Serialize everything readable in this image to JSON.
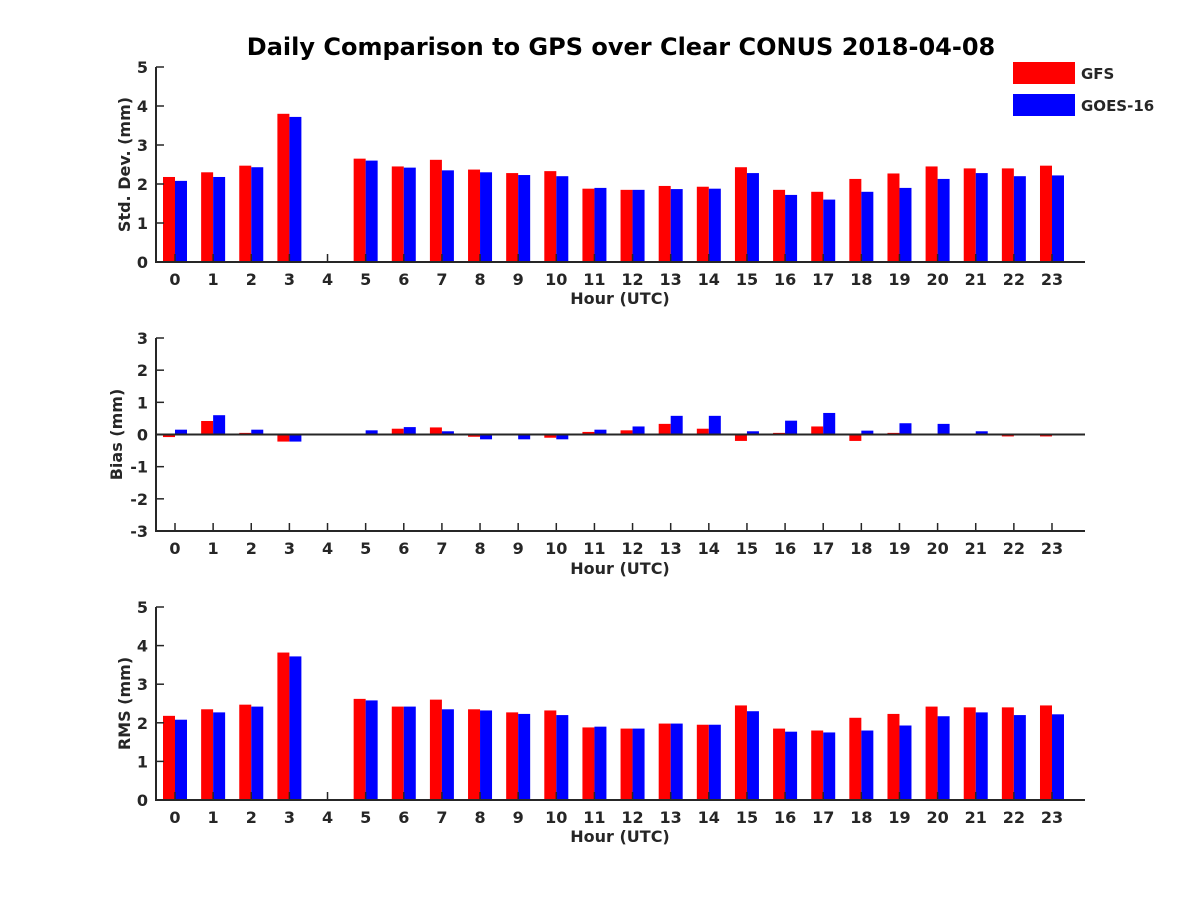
{
  "figure_title": "Daily Comparison to GPS over Clear CONUS 2018-04-08",
  "legend": [
    {
      "label": "GFS",
      "color": "#ff0000"
    },
    {
      "label": "GOES-16",
      "color": "#0000ff"
    }
  ],
  "chart_data": [
    {
      "type": "bar",
      "title": "Daily Comparison to GPS over Clear CONUS 2018-04-08",
      "xlabel": "Hour (UTC)",
      "ylabel": "Std. Dev. (mm)",
      "ylim": [
        0,
        5
      ],
      "yticks": [
        0,
        1,
        2,
        3,
        4,
        5
      ],
      "categories": [
        "0",
        "1",
        "2",
        "3",
        "4",
        "5",
        "6",
        "7",
        "8",
        "9",
        "10",
        "11",
        "12",
        "13",
        "14",
        "15",
        "16",
        "17",
        "18",
        "19",
        "20",
        "21",
        "22",
        "23"
      ],
      "series": [
        {
          "name": "GFS",
          "values": [
            2.18,
            2.3,
            2.47,
            3.8,
            null,
            2.65,
            2.45,
            2.62,
            2.37,
            2.28,
            2.33,
            1.88,
            1.85,
            1.95,
            1.93,
            2.43,
            1.85,
            1.8,
            2.13,
            2.27,
            2.45,
            2.4,
            2.4,
            2.47
          ]
        },
        {
          "name": "GOES-16",
          "values": [
            2.08,
            2.18,
            2.43,
            3.72,
            null,
            2.6,
            2.42,
            2.35,
            2.3,
            2.23,
            2.2,
            1.9,
            1.85,
            1.87,
            1.88,
            2.28,
            1.72,
            1.6,
            1.8,
            1.9,
            2.13,
            2.28,
            2.2,
            2.22
          ]
        }
      ]
    },
    {
      "type": "bar",
      "title": "",
      "xlabel": "Hour (UTC)",
      "ylabel": "Bias (mm)",
      "ylim": [
        -3,
        3
      ],
      "yticks": [
        -3,
        -2,
        -1,
        0,
        1,
        2,
        3
      ],
      "categories": [
        "0",
        "1",
        "2",
        "3",
        "4",
        "5",
        "6",
        "7",
        "8",
        "9",
        "10",
        "11",
        "12",
        "13",
        "14",
        "15",
        "16",
        "17",
        "18",
        "19",
        "20",
        "21",
        "22",
        "23"
      ],
      "series": [
        {
          "name": "GFS",
          "values": [
            -0.08,
            0.42,
            0.05,
            -0.22,
            null,
            0.02,
            0.18,
            0.22,
            -0.07,
            0.0,
            -0.1,
            0.08,
            0.13,
            0.33,
            0.18,
            -0.2,
            0.05,
            0.25,
            -0.2,
            0.05,
            0.03,
            0.02,
            -0.06,
            -0.06
          ]
        },
        {
          "name": "GOES-16",
          "values": [
            0.15,
            0.6,
            0.15,
            -0.22,
            null,
            0.13,
            0.23,
            0.1,
            -0.15,
            -0.15,
            -0.15,
            0.15,
            0.25,
            0.58,
            0.58,
            0.1,
            0.43,
            0.67,
            0.12,
            0.35,
            0.33,
            0.1,
            -0.02,
            -0.03
          ]
        }
      ]
    },
    {
      "type": "bar",
      "title": "",
      "xlabel": "Hour (UTC)",
      "ylabel": "RMS (mm)",
      "ylim": [
        0,
        5
      ],
      "yticks": [
        0,
        1,
        2,
        3,
        4,
        5
      ],
      "categories": [
        "0",
        "1",
        "2",
        "3",
        "4",
        "5",
        "6",
        "7",
        "8",
        "9",
        "10",
        "11",
        "12",
        "13",
        "14",
        "15",
        "16",
        "17",
        "18",
        "19",
        "20",
        "21",
        "22",
        "23"
      ],
      "series": [
        {
          "name": "GFS",
          "values": [
            2.18,
            2.35,
            2.47,
            3.82,
            null,
            2.62,
            2.42,
            2.6,
            2.35,
            2.27,
            2.32,
            1.88,
            1.85,
            1.98,
            1.95,
            2.45,
            1.85,
            1.8,
            2.13,
            2.23,
            2.42,
            2.4,
            2.4,
            2.45
          ]
        },
        {
          "name": "GOES-16",
          "values": [
            2.08,
            2.27,
            2.42,
            3.72,
            null,
            2.58,
            2.42,
            2.35,
            2.32,
            2.23,
            2.2,
            1.9,
            1.85,
            1.98,
            1.95,
            2.3,
            1.77,
            1.75,
            1.8,
            1.93,
            2.17,
            2.27,
            2.2,
            2.22
          ]
        }
      ]
    }
  ]
}
